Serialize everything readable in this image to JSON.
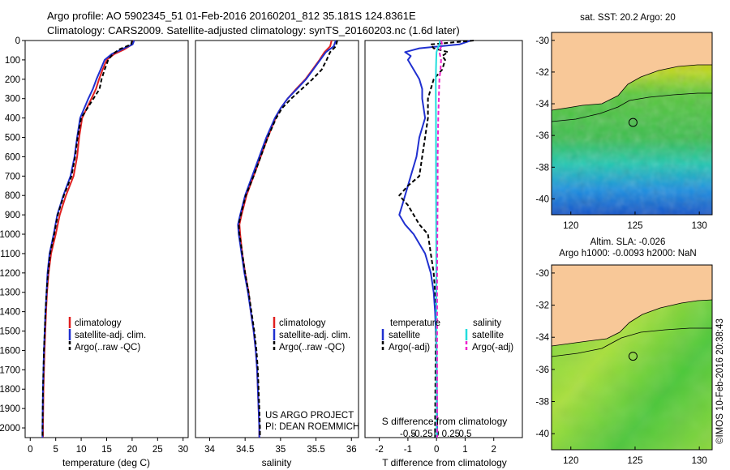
{
  "header": {
    "line1": "Argo profile: AO 5902345_51 01-Feb-2016 20160201_812 35.181S 124.8361E",
    "line2": "Climatology: CARS2009. Satellite-adjusted climatology: synTS_20160203.nc (1.6d later)"
  },
  "depth_axis": {
    "ticks": [
      "0",
      "100",
      "200",
      "300",
      "400",
      "500",
      "600",
      "700",
      "800",
      "900",
      "1000",
      "1100",
      "1200",
      "1300",
      "1400",
      "1500",
      "1600",
      "1700",
      "1800",
      "1900",
      "2000"
    ]
  },
  "colors": {
    "climatology": "#e02020",
    "satellite": "#2030d0",
    "argo": "#000000",
    "satellite_s": "#22dddd",
    "argo_s": "#ee22cc",
    "land": "#f8c898"
  },
  "chart_data": [
    {
      "type": "line",
      "panel": "temperature",
      "xlabel": "temperature (deg C)",
      "xlim": [
        -1,
        31
      ],
      "ylim": [
        2050,
        0
      ],
      "xticks": [
        "0",
        "5",
        "10",
        "15",
        "20",
        "25",
        "30"
      ],
      "legend": [
        "climatology",
        "satellite-adj. clim.",
        "Argo(..raw -QC)"
      ],
      "series": [
        {
          "name": "climatology",
          "color": "#e02020",
          "dash": false,
          "depth": [
            0,
            20,
            45,
            70,
            100,
            150,
            200,
            250,
            300,
            400,
            500,
            600,
            700,
            800,
            900,
            1000,
            1100,
            1200,
            1300,
            1400,
            1600,
            1800,
            2000,
            2050
          ],
          "values": [
            20.2,
            20.0,
            18.5,
            16.5,
            15.0,
            14.2,
            13.5,
            12.9,
            12.0,
            10.2,
            9.6,
            9.2,
            8.5,
            7.0,
            5.8,
            5.0,
            4.1,
            3.6,
            3.3,
            3.1,
            2.8,
            2.6,
            2.5,
            2.5
          ]
        },
        {
          "name": "satellite-adj. clim.",
          "color": "#2030d0",
          "dash": false,
          "depth": [
            0,
            20,
            45,
            70,
            100,
            150,
            200,
            250,
            300,
            400,
            500,
            600,
            700,
            800,
            900,
            1000,
            1100,
            1200,
            1300,
            1400,
            1600,
            1800,
            2000,
            2050
          ],
          "values": [
            20.4,
            20.1,
            18.0,
            16.0,
            14.6,
            13.8,
            13.0,
            12.3,
            11.4,
            9.8,
            9.2,
            8.7,
            7.9,
            6.5,
            5.3,
            4.6,
            3.8,
            3.4,
            3.2,
            3.0,
            2.7,
            2.5,
            2.4,
            2.4
          ]
        },
        {
          "name": "Argo(..raw -QC)",
          "color": "#000000",
          "dash": true,
          "depth": [
            0,
            20,
            45,
            70,
            100,
            150,
            200,
            250,
            300,
            400,
            500,
            600,
            700,
            800,
            900,
            1000,
            1100,
            1200,
            1300,
            1400,
            1600,
            1800,
            2000,
            2050
          ],
          "values": [
            20.0,
            19.8,
            17.5,
            16.2,
            15.3,
            14.6,
            14.0,
            13.6,
            12.4,
            10.0,
            9.3,
            8.8,
            8.1,
            6.6,
            5.4,
            4.7,
            3.9,
            3.5,
            3.2,
            3.0,
            2.7,
            2.5,
            2.4,
            2.4
          ]
        }
      ]
    },
    {
      "type": "line",
      "panel": "salinity",
      "xlabel": "salinity",
      "xlim": [
        33.8,
        36.1
      ],
      "ylim": [
        2050,
        0
      ],
      "xticks": [
        "34",
        "34.5",
        "35",
        "35.5",
        "36"
      ],
      "legend": [
        "climatology",
        "satellite-adj. clim.",
        "Argo(..raw -QC)"
      ],
      "annotation": [
        "US ARGO PROJECT",
        "PI: DEAN ROEMMICH"
      ],
      "series": [
        {
          "name": "climatology",
          "color": "#e02020",
          "dash": false,
          "depth": [
            0,
            30,
            60,
            100,
            150,
            200,
            250,
            300,
            350,
            400,
            500,
            600,
            700,
            800,
            900,
            950,
            1000,
            1100,
            1200,
            1300,
            1400,
            1500,
            1600,
            1700,
            1800,
            1900,
            2000,
            2050
          ],
          "values": [
            35.72,
            35.7,
            35.62,
            35.55,
            35.45,
            35.35,
            35.22,
            35.1,
            35.0,
            34.93,
            34.82,
            34.72,
            34.62,
            34.52,
            34.45,
            34.42,
            34.43,
            34.46,
            34.5,
            34.55,
            34.58,
            34.62,
            34.65,
            34.67,
            34.68,
            34.69,
            34.7,
            34.7
          ]
        },
        {
          "name": "satellite-adj. clim.",
          "color": "#2030d0",
          "dash": false,
          "depth": [
            0,
            30,
            60,
            100,
            150,
            200,
            250,
            300,
            350,
            400,
            500,
            600,
            700,
            800,
            900,
            950,
            1000,
            1100,
            1200,
            1300,
            1400,
            1500,
            1600,
            1700,
            1800,
            1900,
            2000,
            2050
          ],
          "values": [
            35.78,
            35.75,
            35.64,
            35.56,
            35.46,
            35.36,
            35.23,
            35.1,
            35.0,
            34.92,
            34.8,
            34.7,
            34.6,
            34.5,
            34.43,
            34.4,
            34.41,
            34.45,
            34.49,
            34.54,
            34.58,
            34.62,
            34.65,
            34.67,
            34.68,
            34.69,
            34.7,
            34.7
          ]
        },
        {
          "name": "Argo(..raw -QC)",
          "color": "#000000",
          "dash": true,
          "depth": [
            0,
            30,
            60,
            100,
            150,
            200,
            250,
            300,
            350,
            400,
            500,
            600,
            700,
            800,
            900,
            950,
            1000,
            1100,
            1200,
            1300,
            1400,
            1500,
            1600,
            1700,
            1800,
            1900,
            2000,
            2050
          ],
          "values": [
            35.8,
            35.78,
            35.7,
            35.65,
            35.58,
            35.45,
            35.3,
            35.15,
            35.02,
            34.94,
            34.82,
            34.72,
            34.62,
            34.51,
            34.44,
            34.41,
            34.42,
            34.46,
            34.5,
            34.55,
            34.59,
            34.63,
            34.66,
            34.68,
            34.69,
            34.7,
            34.71,
            34.71
          ]
        }
      ]
    },
    {
      "type": "line",
      "panel": "difference",
      "xlabel": "T difference from climatology",
      "xlabel2": "S difference from climatology",
      "xlim": [
        -2.5,
        3
      ],
      "ylim": [
        2050,
        0
      ],
      "xticks": [
        "-2",
        "-1",
        "0",
        "1",
        "2"
      ],
      "xticks2": [
        "-0.5",
        "-0.25",
        "0",
        "0.25",
        "0.5"
      ],
      "legend_headers": [
        "temperature",
        "salinity"
      ],
      "legend": [
        "satellite",
        "Argo(-adj)",
        "satellite",
        "Argo(-adj)"
      ],
      "series": [
        {
          "name": "temperature satellite",
          "color": "#2030d0",
          "dash": false,
          "depth": [
            0,
            20,
            40,
            60,
            80,
            100,
            150,
            200,
            250,
            300,
            400,
            500,
            600,
            700,
            750,
            800,
            850,
            900,
            950,
            1000,
            1100,
            1200,
            1300,
            1400,
            1600,
            2000,
            2050
          ],
          "values": [
            1.2,
            0.8,
            -0.6,
            -1.1,
            -0.9,
            -1.0,
            -0.8,
            -0.6,
            -0.5,
            -0.5,
            -0.4,
            -0.6,
            -0.7,
            -0.9,
            -1.0,
            -1.1,
            -1.2,
            -1.3,
            -1.1,
            -0.8,
            -0.4,
            -0.2,
            -0.1,
            -0.05,
            0,
            0.02,
            0.02
          ]
        },
        {
          "name": "temperature Argo(-adj)",
          "color": "#000000",
          "dash": true,
          "depth": [
            0,
            20,
            40,
            60,
            80,
            100,
            150,
            200,
            250,
            300,
            400,
            500,
            600,
            700,
            750,
            800,
            850,
            900,
            950,
            1000,
            1100,
            1200,
            1300,
            1400,
            1600,
            2000,
            2050
          ],
          "values": [
            1.3,
            -0.2,
            -0.1,
            0.4,
            0.2,
            0.3,
            0.2,
            -0.1,
            -0.2,
            -0.3,
            -0.3,
            -0.4,
            -0.5,
            -0.6,
            -1.0,
            -1.3,
            -1.0,
            -0.8,
            -0.6,
            -0.3,
            -0.2,
            -0.1,
            -0.05,
            0,
            -0.03,
            -0.05,
            -0.05
          ]
        },
        {
          "name": "salinity satellite",
          "color": "#22dddd",
          "dash": false,
          "depth": [
            0,
            20,
            40,
            60,
            100,
            150,
            200,
            300,
            400,
            600,
            800,
            1000,
            1200,
            1400,
            1600,
            1800,
            2000,
            2050
          ],
          "values": [
            0.06,
            0.05,
            0.02,
            0.0,
            -0.005,
            -0.01,
            -0.012,
            -0.012,
            -0.01,
            -0.01,
            -0.008,
            -0.006,
            -0.004,
            -0.002,
            0.0,
            0.0,
            0.0,
            0.0
          ]
        },
        {
          "name": "salinity Argo(-adj)",
          "color": "#ee22cc",
          "dash": true,
          "depth": [
            0,
            20,
            40,
            60,
            100,
            150,
            200,
            300,
            400,
            600,
            800,
            1000,
            1200,
            1400,
            1600,
            1800,
            2000,
            2050
          ],
          "values": [
            0.08,
            0.1,
            0.07,
            0.05,
            0.08,
            0.07,
            0.05,
            0.04,
            0.03,
            0.02,
            0.02,
            0.015,
            0.01,
            0.01,
            0.01,
            0.01,
            0.01,
            0.01
          ]
        }
      ]
    },
    {
      "type": "heatmap",
      "panel": "sst_map",
      "title": "sat. SST: 20.2 Argo: 20",
      "xticks": [
        "120",
        "125",
        "130"
      ],
      "yticks": [
        "-30",
        "-32",
        "-34",
        "-36",
        "-38",
        "-40"
      ],
      "xlim": [
        118.5,
        131
      ],
      "ylim": [
        -41,
        -29.5
      ],
      "marker": {
        "lon": 124.84,
        "lat": -35.18
      }
    },
    {
      "type": "heatmap",
      "panel": "sla_map",
      "title": "Altim. SLA: -0.026",
      "subtitle": "Argo h1000: -0.0093 h2000: NaN",
      "xticks": [
        "120",
        "125",
        "130"
      ],
      "yticks": [
        "-30",
        "-32",
        "-34",
        "-36",
        "-38",
        "-40"
      ],
      "xlim": [
        118.5,
        131
      ],
      "ylim": [
        -41,
        -29.5
      ],
      "marker": {
        "lon": 124.84,
        "lat": -35.18
      }
    }
  ],
  "credit": "©IMOS 10-Feb-2016 20:38:43"
}
